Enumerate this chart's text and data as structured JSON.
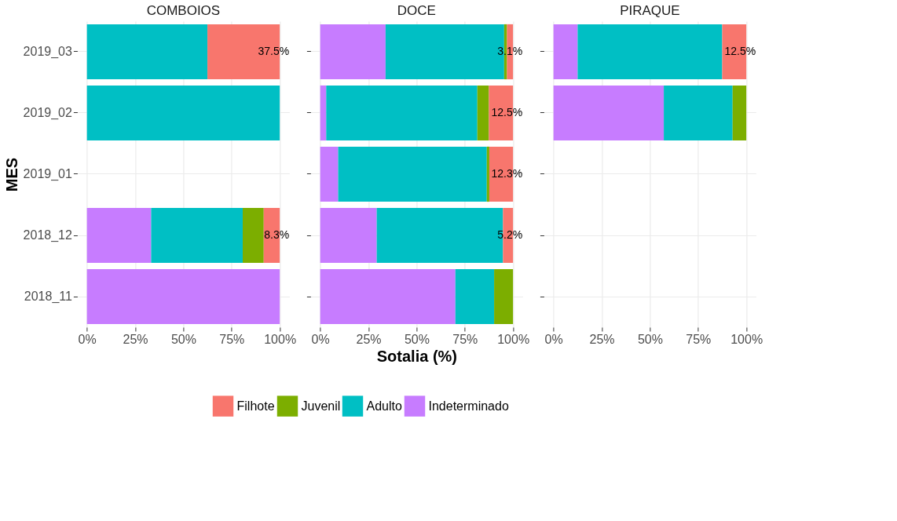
{
  "chart_data": [
    {
      "type": "bar",
      "orientation": "horizontal",
      "stacked": true,
      "title": "COMBOIOS",
      "ylabel": "MES",
      "grid": true,
      "legend": "bottom",
      "categories": [
        "2019_03",
        "2019_02",
        "2019_01",
        "2018_12",
        "2018_11"
      ],
      "xlim": [
        -5,
        105
      ],
      "xticks": [
        {
          "value": 0,
          "label": "0%"
        },
        {
          "value": 25,
          "label": "25%"
        },
        {
          "value": 50,
          "label": "50%"
        },
        {
          "value": 75,
          "label": "75%"
        },
        {
          "value": 100,
          "label": "100%"
        }
      ],
      "series": [
        {
          "name": "Indeterminado",
          "color": "#c77cff",
          "values": [
            null,
            null,
            null,
            33.3,
            100
          ]
        },
        {
          "name": "Adulto",
          "color": "#00bfc4",
          "values": [
            62.5,
            100,
            null,
            47.5,
            null
          ]
        },
        {
          "name": "Juvenil",
          "color": "#7cae00",
          "values": [
            null,
            null,
            null,
            10.9,
            null
          ]
        },
        {
          "name": "Filhote",
          "color": "#f8766d",
          "values": [
            37.5,
            null,
            null,
            8.3,
            null
          ],
          "value_labels": [
            "37.5%",
            null,
            null,
            "8.3%",
            null
          ]
        }
      ]
    },
    {
      "type": "bar",
      "orientation": "horizontal",
      "stacked": true,
      "title": "DOCE",
      "xlabel": "Sotalia (%)",
      "grid": true,
      "tick_labels": "x",
      "categories": [
        "2019_03",
        "2019_02",
        "2019_01",
        "2018_12",
        "2018_11"
      ],
      "xlim": [
        -5,
        105
      ],
      "xticks": [
        {
          "value": 0,
          "label": "0%"
        },
        {
          "value": 25,
          "label": "25%"
        },
        {
          "value": 50,
          "label": "50%"
        },
        {
          "value": 75,
          "label": "75%"
        },
        {
          "value": 100,
          "label": "100%"
        }
      ],
      "series": [
        {
          "name": "Indeterminado",
          "color": "#c77cff",
          "values": [
            33.9,
            3.1,
            9.3,
            29.3,
            70.1
          ]
        },
        {
          "name": "Adulto",
          "color": "#00bfc4",
          "values": [
            61.5,
            78.4,
            77.1,
            65.5,
            20.1
          ]
        },
        {
          "name": "Juvenil",
          "color": "#7cae00",
          "values": [
            1.5,
            6.0,
            1.3,
            null,
            9.8
          ]
        },
        {
          "name": "Filhote",
          "color": "#f8766d",
          "values": [
            3.1,
            12.5,
            12.3,
            5.2,
            null
          ],
          "value_labels": [
            "3.1%",
            "12.5%",
            "12.3%",
            "5.2%",
            null
          ]
        }
      ]
    },
    {
      "type": "bar",
      "orientation": "horizontal",
      "stacked": true,
      "title": "PIRAQUE",
      "grid": true,
      "tick_labels": "x",
      "categories": [
        "2019_03",
        "2019_02",
        "2019_01",
        "2018_12",
        "2018_11"
      ],
      "xlim": [
        -5,
        105
      ],
      "xticks": [
        {
          "value": 0,
          "label": "0%"
        },
        {
          "value": 25,
          "label": "25%"
        },
        {
          "value": 50,
          "label": "50%"
        },
        {
          "value": 75,
          "label": "75%"
        },
        {
          "value": 100,
          "label": "100%"
        }
      ],
      "series": [
        {
          "name": "Indeterminado",
          "color": "#c77cff",
          "values": [
            12.5,
            57.2,
            null,
            null,
            null
          ]
        },
        {
          "name": "Adulto",
          "color": "#00bfc4",
          "values": [
            75.0,
            35.7,
            null,
            null,
            null
          ]
        },
        {
          "name": "Juvenil",
          "color": "#7cae00",
          "values": [
            null,
            7.1,
            null,
            null,
            null
          ]
        },
        {
          "name": "Filhote",
          "color": "#f8766d",
          "values": [
            12.5,
            null,
            null,
            null,
            null
          ],
          "value_labels": [
            "12.5%",
            null,
            null,
            null,
            null
          ]
        }
      ]
    }
  ]
}
